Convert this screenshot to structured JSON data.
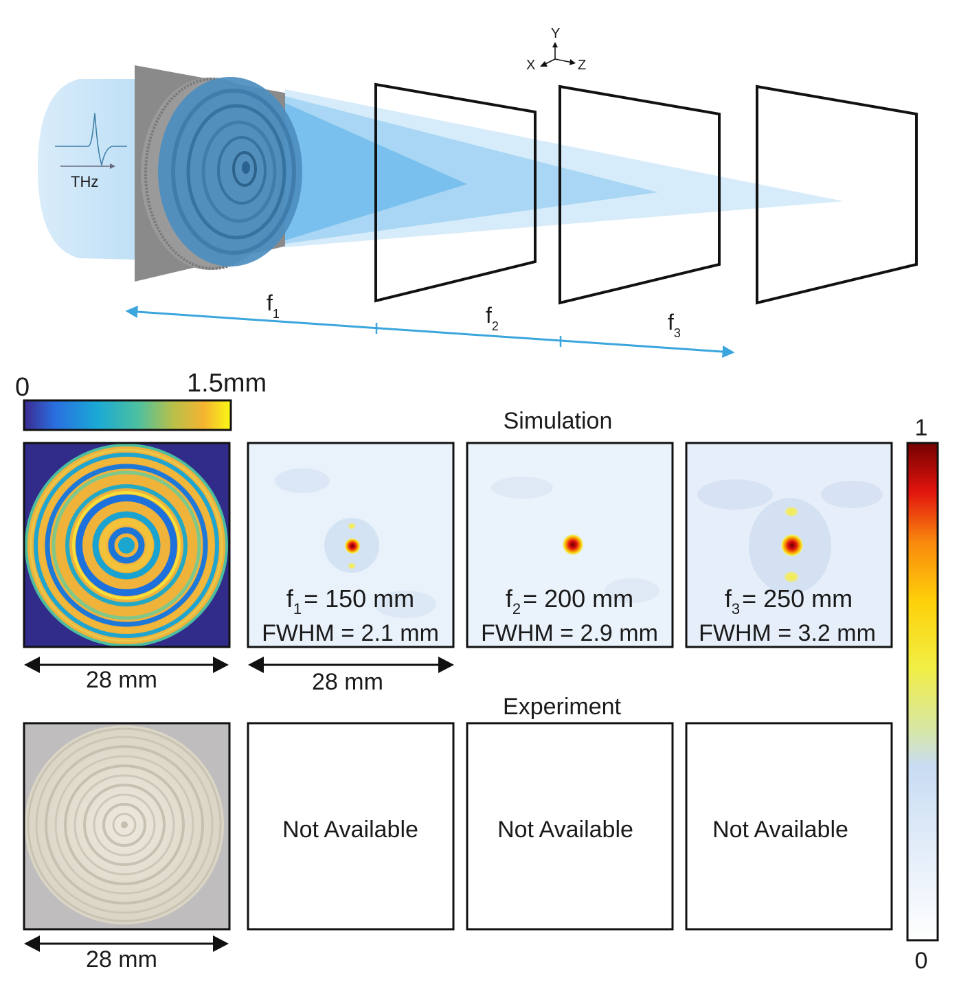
{
  "schematic": {
    "axes": {
      "y": "Y",
      "x": "X",
      "z": "Z"
    },
    "source_label": "THz",
    "distances": [
      {
        "letter": "f",
        "sub": "1"
      },
      {
        "letter": "f",
        "sub": "2"
      },
      {
        "letter": "f",
        "sub": "3"
      }
    ]
  },
  "thickness_scale": {
    "min": "0",
    "max": "1.5mm"
  },
  "intensity_scale": {
    "max": "1",
    "min": "0"
  },
  "rows": {
    "simulation": "Simulation",
    "experiment": "Experiment"
  },
  "scale_bars": {
    "design": "28 mm",
    "simulation": "28 mm",
    "photo": "28 mm"
  },
  "simulation_panels": [
    {
      "f_letter": "f",
      "f_sub": "1",
      "f_value": "= 150 mm",
      "fwhm": "FWHM = 2.1 mm"
    },
    {
      "f_letter": "f",
      "f_sub": "2",
      "f_value": "= 200 mm",
      "fwhm": "FWHM = 2.9 mm"
    },
    {
      "f_letter": "f",
      "f_sub": "3",
      "f_value": "= 250 mm",
      "fwhm": "FWHM = 3.2 mm"
    }
  ],
  "experiment_panels": [
    {
      "text": "Not Available"
    },
    {
      "text": "Not Available"
    },
    {
      "text": "Not Available"
    }
  ],
  "colors": {
    "beam": "#56b4f0",
    "arrow": "#3aa6dd",
    "lens": "#4a88b8",
    "frame": "#111111"
  }
}
